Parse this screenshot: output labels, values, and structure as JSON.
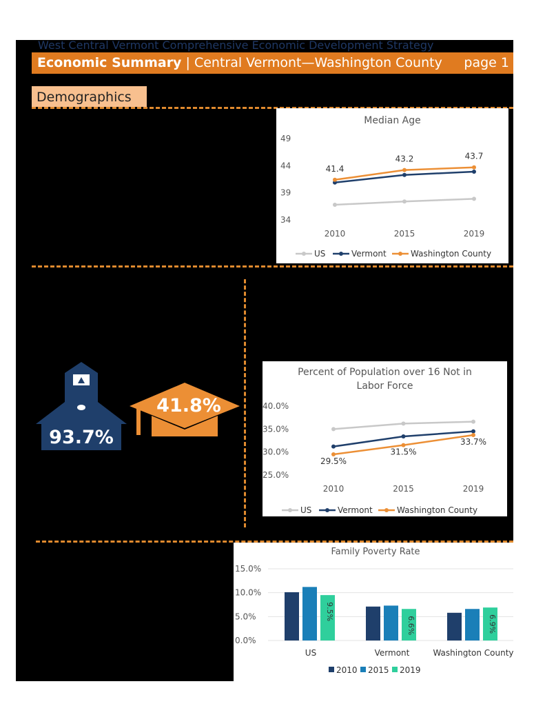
{
  "header": {
    "subtitle": "West Central Vermont Comprehensive Economic Development Strategy",
    "title_bold": "Economic Summary",
    "title_rest": "| Central Vermont—Washington County",
    "page": "page 1"
  },
  "section": {
    "tab": "Demographics"
  },
  "stats": {
    "high_school": "93.7%",
    "bachelors": "41.8%"
  },
  "colors": {
    "us": "#c8c8c8",
    "vermont": "#1f3f6b",
    "washington": "#ec8f35",
    "bar2010": "#1f3f6b",
    "bar2015": "#1a7fb8",
    "bar2019": "#2fcf9c",
    "orange": "#e07b20"
  },
  "chart_data": [
    {
      "type": "line",
      "title": "Median Age",
      "categories": [
        "2010",
        "2015",
        "2019"
      ],
      "ylim": [
        34,
        49
      ],
      "yticks": [
        "34",
        "39",
        "44",
        "49"
      ],
      "series": [
        {
          "name": "US",
          "values": [
            36.8,
            37.4,
            37.9
          ]
        },
        {
          "name": "Vermont",
          "values": [
            40.9,
            42.3,
            42.9
          ]
        },
        {
          "name": "Washington County",
          "values": [
            41.4,
            43.2,
            43.7
          ],
          "labels": [
            "41.4",
            "43.2",
            "43.7"
          ]
        }
      ],
      "legend": "bottom"
    },
    {
      "type": "line",
      "title": "Percent of Population over 16 Not in Labor Force",
      "categories": [
        "2010",
        "2015",
        "2019"
      ],
      "ylim": [
        25,
        40
      ],
      "yticks": [
        "25.0%",
        "30.0%",
        "35.0%",
        "40.0%"
      ],
      "series": [
        {
          "name": "US",
          "values": [
            35.0,
            36.2,
            36.6
          ]
        },
        {
          "name": "Vermont",
          "values": [
            31.2,
            33.4,
            34.5
          ]
        },
        {
          "name": "Washington County",
          "values": [
            29.5,
            31.5,
            33.7
          ],
          "labels": [
            "29.5%",
            "31.5%",
            "33.7%"
          ]
        }
      ],
      "legend": "bottom"
    },
    {
      "type": "bar",
      "title": "Family Poverty Rate",
      "categories": [
        "US",
        "Vermont",
        "Washington County"
      ],
      "ylim": [
        0,
        15
      ],
      "yticks": [
        "0.0%",
        "5.0%",
        "10.0%",
        "15.0%"
      ],
      "series": [
        {
          "name": "2010",
          "values": [
            10.1,
            7.1,
            5.8
          ]
        },
        {
          "name": "2015",
          "values": [
            11.2,
            7.3,
            6.6
          ]
        },
        {
          "name": "2019",
          "values": [
            9.5,
            6.6,
            6.9
          ],
          "labels": [
            "9.5%",
            "6.6%",
            "6.9%"
          ]
        }
      ],
      "legend": "bottom"
    }
  ]
}
